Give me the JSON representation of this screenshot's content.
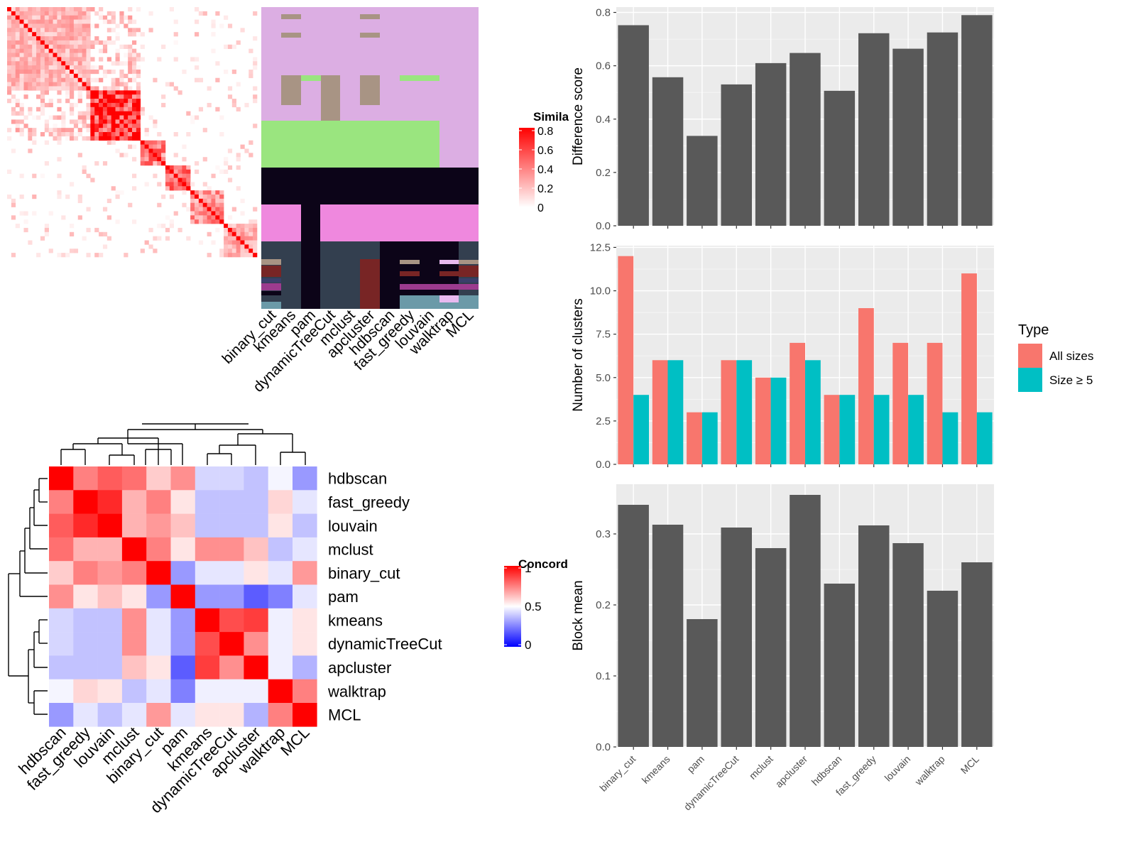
{
  "methods": [
    "binary_cut",
    "kmeans",
    "pam",
    "dynamicTreeCut",
    "mclust",
    "apcluster",
    "hdbscan",
    "fast_greedy",
    "louvain",
    "walktrap",
    "MCL"
  ],
  "similarity_heatmap": {
    "legend_title": "Simila",
    "legend_ticks": [
      "0.8",
      "0.6",
      "0.4",
      "0.2",
      "0"
    ],
    "colors": {
      "high": "#ff0000",
      "low": "#ffffff"
    }
  },
  "cluster_membership": {
    "columns": [
      "binary_cut",
      "kmeans",
      "pam",
      "dynamicTreeCut",
      "mclust",
      "apcluster",
      "hdbscan",
      "fast_greedy",
      "louvain",
      "walktrap",
      "MCL"
    ],
    "palette": {
      "lavender": "#dcaee3",
      "tan": "#a89484",
      "green": "#9ae57f",
      "black": "#0c0418",
      "pink": "#ef88de",
      "slate": "#333f4f",
      "maroon": "#782525",
      "purple": "#9c3b8e",
      "teal": "#6b9aa8",
      "lilac": "#e8b9ef",
      "darkblue": "#3a3f6a"
    }
  },
  "concordance": {
    "legend_title": "Concord",
    "legend_ticks": [
      "1",
      "0.5",
      "0"
    ],
    "rows": [
      "hdbscan",
      "fast_greedy",
      "louvain",
      "mclust",
      "binary_cut",
      "pam",
      "kmeans",
      "dynamicTreeCut",
      "apcluster",
      "walktrap",
      "MCL"
    ],
    "cols": [
      "hdbscan",
      "fast_greedy",
      "louvain",
      "mclust",
      "binary_cut",
      "pam",
      "kmeans",
      "dynamicTreeCut",
      "apcluster",
      "walktrap",
      "MCL"
    ],
    "values": [
      [
        1.0,
        0.75,
        0.82,
        0.78,
        0.6,
        0.72,
        0.42,
        0.42,
        0.38,
        0.48,
        0.3
      ],
      [
        0.75,
        1.0,
        0.92,
        0.65,
        0.75,
        0.55,
        0.38,
        0.38,
        0.38,
        0.58,
        0.45
      ],
      [
        0.82,
        0.92,
        1.0,
        0.65,
        0.7,
        0.62,
        0.38,
        0.38,
        0.38,
        0.55,
        0.38
      ],
      [
        0.78,
        0.65,
        0.65,
        1.0,
        0.75,
        0.55,
        0.72,
        0.72,
        0.62,
        0.38,
        0.45
      ],
      [
        0.6,
        0.75,
        0.7,
        0.75,
        1.0,
        0.3,
        0.45,
        0.45,
        0.55,
        0.45,
        0.7
      ],
      [
        0.72,
        0.55,
        0.62,
        0.55,
        0.3,
        1.0,
        0.3,
        0.3,
        0.18,
        0.25,
        0.45
      ],
      [
        0.42,
        0.38,
        0.38,
        0.72,
        0.45,
        0.3,
        1.0,
        0.85,
        0.88,
        0.47,
        0.55
      ],
      [
        0.42,
        0.38,
        0.38,
        0.72,
        0.45,
        0.3,
        0.85,
        1.0,
        0.72,
        0.47,
        0.55
      ],
      [
        0.38,
        0.38,
        0.38,
        0.62,
        0.55,
        0.18,
        0.88,
        0.72,
        1.0,
        0.47,
        0.35
      ],
      [
        0.48,
        0.58,
        0.55,
        0.38,
        0.45,
        0.25,
        0.47,
        0.47,
        0.47,
        1.0,
        0.75
      ],
      [
        0.3,
        0.45,
        0.38,
        0.45,
        0.7,
        0.45,
        0.55,
        0.55,
        0.35,
        0.75,
        1.0
      ]
    ],
    "colors": {
      "high": "#ff0000",
      "mid": "#ffffff",
      "low": "#0000ff"
    }
  },
  "chart_data": [
    {
      "type": "bar",
      "categories": [
        "binary_cut",
        "kmeans",
        "pam",
        "dynamicTreeCut",
        "mclust",
        "apcluster",
        "hdbscan",
        "fast_greedy",
        "louvain",
        "walktrap",
        "MCL"
      ],
      "values": [
        0.752,
        0.557,
        0.337,
        0.53,
        0.61,
        0.648,
        0.506,
        0.722,
        0.664,
        0.725,
        0.79
      ],
      "ylabel": "Difference score",
      "ylim": [
        0,
        0.82
      ],
      "yticks": [
        "0.0",
        "0.2",
        "0.4",
        "0.6",
        "0.8"
      ],
      "color": "#595959"
    },
    {
      "type": "bar",
      "categories": [
        "binary_cut",
        "kmeans",
        "pam",
        "dynamicTreeCut",
        "mclust",
        "apcluster",
        "hdbscan",
        "fast_greedy",
        "louvain",
        "walktrap",
        "MCL"
      ],
      "series": [
        {
          "name": "All sizes",
          "values": [
            12,
            6,
            3,
            6,
            5,
            7,
            4,
            9,
            7,
            7,
            11
          ],
          "color": "#f8766d"
        },
        {
          "name": "Size ≥ 5",
          "values": [
            4,
            6,
            3,
            6,
            5,
            6,
            4,
            4,
            4,
            3,
            3
          ],
          "color": "#00bfc4"
        }
      ],
      "ylabel": "Number of clusters",
      "ylim": [
        0,
        12.6
      ],
      "yticks": [
        "0.0",
        "2.5",
        "5.0",
        "7.5",
        "10.0",
        "12.5"
      ],
      "legend_title": "Type",
      "legend_position": "right"
    },
    {
      "type": "bar",
      "categories": [
        "binary_cut",
        "kmeans",
        "pam",
        "dynamicTreeCut",
        "mclust",
        "apcluster",
        "hdbscan",
        "fast_greedy",
        "louvain",
        "walktrap",
        "MCL"
      ],
      "values": [
        0.341,
        0.313,
        0.18,
        0.309,
        0.28,
        0.355,
        0.23,
        0.312,
        0.287,
        0.22,
        0.26
      ],
      "ylabel": "Block mean",
      "ylim": [
        0,
        0.37
      ],
      "yticks": [
        "0.0",
        "0.1",
        "0.2",
        "0.3"
      ],
      "color": "#595959"
    }
  ]
}
